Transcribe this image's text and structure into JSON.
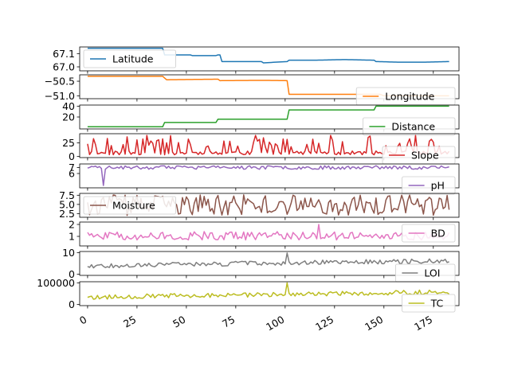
{
  "chart_data": {
    "type": "line",
    "x_ticks": [
      0,
      25,
      50,
      75,
      100,
      125,
      150,
      175
    ],
    "x_range": [
      -4,
      188
    ],
    "subplots": [
      {
        "name": "Latitude",
        "color": "#1f77b4",
        "legend_loc": "lower-left",
        "ylim": [
          66.97,
          67.15
        ],
        "yticks": [
          67.0,
          67.1
        ],
        "ytick_labels": [
          "67.0",
          "67.1"
        ],
        "segments": [
          [
            0,
            67.14
          ],
          [
            38,
            67.14
          ],
          [
            39,
            67.09
          ],
          [
            52,
            67.09
          ],
          [
            53,
            67.085
          ],
          [
            65,
            67.085
          ],
          [
            66,
            67.09
          ],
          [
            67,
            67.09
          ],
          [
            68,
            67.04
          ],
          [
            88,
            67.04
          ],
          [
            89,
            67.03
          ],
          [
            101,
            67.04
          ],
          [
            102,
            67.05
          ],
          [
            115,
            67.05
          ],
          [
            130,
            67.055
          ],
          [
            145,
            67.05
          ],
          [
            146,
            67.04
          ],
          [
            158,
            67.035
          ],
          [
            170,
            67.035
          ],
          [
            183,
            67.04
          ]
        ]
      },
      {
        "name": "Longitude",
        "color": "#ff7f0e",
        "legend_loc": "lower-right",
        "ylim": [
          -51.1,
          -50.28
        ],
        "yticks": [
          -50.5,
          -51.0
        ],
        "ytick_labels": [
          "−50.5",
          "−51.0"
        ],
        "segments": [
          [
            0,
            -50.33
          ],
          [
            38,
            -50.33
          ],
          [
            40,
            -50.45
          ],
          [
            52,
            -50.44
          ],
          [
            66,
            -50.43
          ],
          [
            67,
            -50.48
          ],
          [
            88,
            -50.47
          ],
          [
            101,
            -50.48
          ],
          [
            102,
            -50.95
          ],
          [
            115,
            -50.95
          ],
          [
            148,
            -50.95
          ],
          [
            150,
            -51.0
          ],
          [
            183,
            -51.0
          ]
        ]
      },
      {
        "name": "Distance",
        "color": "#2ca02c",
        "legend_loc": "lower-right",
        "ylim": [
          -2,
          42
        ],
        "yticks": [
          20,
          40
        ],
        "ytick_labels": [
          "20",
          "40"
        ],
        "segments": [
          [
            0,
            2
          ],
          [
            38,
            2
          ],
          [
            39,
            10
          ],
          [
            65,
            10
          ],
          [
            66,
            16
          ],
          [
            101,
            16
          ],
          [
            102,
            33
          ],
          [
            145,
            33
          ],
          [
            146,
            40
          ],
          [
            183,
            40
          ]
        ]
      },
      {
        "name": "Slope",
        "color": "#d62728",
        "legend_loc": "lower-right",
        "ylim": [
          -2,
          42
        ],
        "yticks": [
          0,
          25
        ],
        "ytick_labels": [
          "0",
          "25"
        ],
        "seed": 11,
        "noise": "spiky",
        "base": 3,
        "amp": 36
      },
      {
        "name": "pH",
        "color": "#9467bd",
        "legend_loc": "lower-right",
        "ylim": [
          3.6,
          7.6
        ],
        "yticks": [
          6,
          7
        ],
        "ytick_labels": [
          "6",
          "7"
        ],
        "seed": 23,
        "noise": "ph",
        "base": 7.0,
        "amp": 0.6
      },
      {
        "name": "Moisture",
        "color": "#8c564b",
        "legend_loc": "lower-left",
        "ylim": [
          1.5,
          8.0
        ],
        "yticks": [
          2.5,
          5.0,
          7.5
        ],
        "ytick_labels": [
          "2.5",
          "5.0",
          "7.5"
        ],
        "seed": 37,
        "noise": "wide",
        "base": 2.0,
        "amp": 5.6
      },
      {
        "name": "BD",
        "color": "#e377c2",
        "legend_loc": "upper-right",
        "ylim": [
          0.2,
          2.2
        ],
        "yticks": [
          1,
          2
        ],
        "ytick_labels": [
          "1",
          "2"
        ],
        "seed": 51,
        "noise": "mid",
        "base": 1.05,
        "amp": 0.35
      },
      {
        "name": "LOI",
        "color": "#7f7f7f",
        "legend_loc": "lower-right",
        "ylim": [
          -0.5,
          10.5
        ],
        "yticks": [
          0,
          10
        ],
        "ytick_labels": [
          "0",
          "10"
        ],
        "seed": 67,
        "noise": "trend",
        "base": 3.5,
        "amp": 1.5
      },
      {
        "name": "TC",
        "color": "#bcbd22",
        "legend_loc": "lower-right",
        "ylim": [
          -5000,
          105000
        ],
        "yticks": [
          0,
          100000
        ],
        "ytick_labels": [
          "0",
          "100000"
        ],
        "seed": 79,
        "noise": "trend",
        "base": 30000,
        "amp": 15000
      }
    ]
  }
}
